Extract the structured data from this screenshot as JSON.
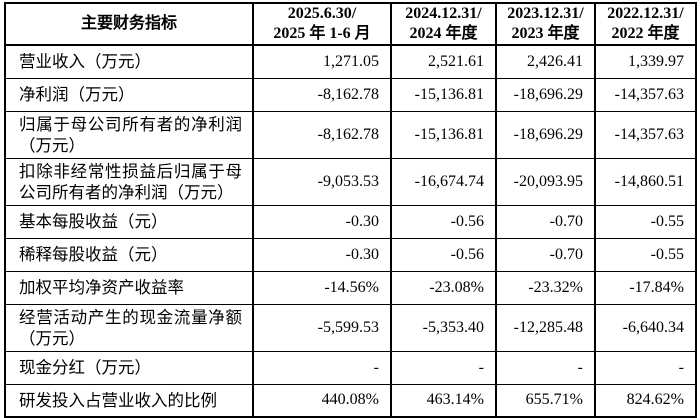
{
  "colors": {
    "background": "#ffffff",
    "border": "#000000",
    "text": "#000000"
  },
  "table": {
    "header": {
      "indicator_label": "主要财务指标",
      "periods": [
        {
          "line1": "2025.6.30/",
          "line2": "2025 年 1-6 月"
        },
        {
          "line1": "2024.12.31/",
          "line2": "2024 年度"
        },
        {
          "line1": "2023.12.31/",
          "line2": "2023 年度"
        },
        {
          "line1": "2022.12.31/",
          "line2": "2022 年度"
        }
      ]
    },
    "rows": [
      {
        "label": "营业收入（万元）",
        "tall": false,
        "values": [
          "1,271.05",
          "2,521.61",
          "2,426.41",
          "1,339.97"
        ]
      },
      {
        "label": "净利润（万元）",
        "tall": false,
        "values": [
          "-8,162.78",
          "-15,136.81",
          "-18,696.29",
          "-14,357.63"
        ]
      },
      {
        "label": "归属于母公司所有者的净利润（万元）",
        "tall": true,
        "values": [
          "-8,162.78",
          "-15,136.81",
          "-18,696.29",
          "-14,357.63"
        ]
      },
      {
        "label": "扣除非经常性损益后归属于母公司所有者的净利润（万元）",
        "tall": true,
        "values": [
          "-9,053.53",
          "-16,674.74",
          "-20,093.95",
          "-14,860.51"
        ]
      },
      {
        "label": "基本每股收益（元）",
        "tall": false,
        "values": [
          "-0.30",
          "-0.56",
          "-0.70",
          "-0.55"
        ]
      },
      {
        "label": "稀释每股收益（元）",
        "tall": false,
        "values": [
          "-0.30",
          "-0.56",
          "-0.70",
          "-0.55"
        ]
      },
      {
        "label": "加权平均净资产收益率",
        "tall": false,
        "values": [
          "-14.56%",
          "-23.08%",
          "-23.32%",
          "-17.84%"
        ]
      },
      {
        "label": "经营活动产生的现金流量净额（万元）",
        "tall": true,
        "values": [
          "-5,599.53",
          "-5,353.40",
          "-12,285.48",
          "-6,640.34"
        ]
      },
      {
        "label": "现金分红（万元）",
        "tall": false,
        "values": [
          "-",
          "-",
          "-",
          "-"
        ]
      },
      {
        "label": "研发投入占营业收入的比例",
        "tall": false,
        "values": [
          "440.08%",
          "463.14%",
          "655.71%",
          "824.62%"
        ]
      }
    ]
  }
}
